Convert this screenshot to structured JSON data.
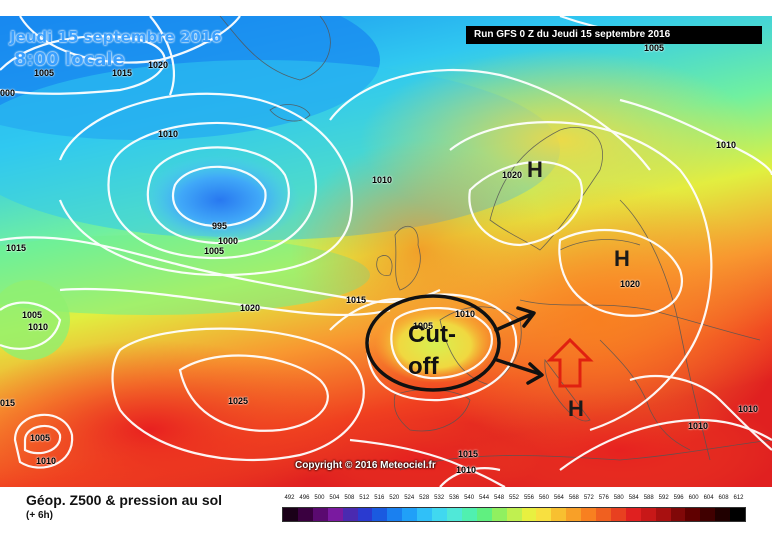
{
  "header": {
    "date_label": "Jeudi 15 septembre 2016",
    "time_label": "8:00 locale",
    "run_label": "Run GFS 0 Z du Jeudi 15 septembre 2016"
  },
  "isobars": [
    {
      "name": "isobar-label-1005-greenland",
      "value": "1005"
    },
    {
      "name": "isobar-label-1015-greenland",
      "value": "1015"
    },
    {
      "name": "isobar-label-1020-north",
      "value": "1020"
    },
    {
      "name": "isobar-label-1000-west-edge",
      "value": "000"
    },
    {
      "name": "isobar-label-1010-north-atlantic",
      "value": "1010"
    },
    {
      "name": "isobar-label-995-low",
      "value": "995"
    },
    {
      "name": "isobar-label-1000-low",
      "value": "1000"
    },
    {
      "name": "isobar-label-1005-low",
      "value": "1005"
    },
    {
      "name": "isobar-label-1010-mid",
      "value": "1010"
    },
    {
      "name": "isobar-label-1015-west",
      "value": "1015"
    },
    {
      "name": "isobar-label-1005-west",
      "value": "1005"
    },
    {
      "name": "isobar-label-1010-west",
      "value": "1010"
    },
    {
      "name": "isobar-label-1020-atlantic",
      "value": "1020"
    },
    {
      "name": "isobar-label-1015-biscay",
      "value": "1015"
    },
    {
      "name": "isobar-label-1025-azores",
      "value": "1025"
    },
    {
      "name": "isobar-label-015-sw-edge",
      "value": "015"
    },
    {
      "name": "isobar-label-1005-sw-low",
      "value": "1005"
    },
    {
      "name": "isobar-label-1010-sw-low",
      "value": "1010"
    },
    {
      "name": "isobar-label-1005-top-right",
      "value": "1005"
    },
    {
      "name": "isobar-label-1020-scandinavia",
      "value": "1020"
    },
    {
      "name": "isobar-label-1010-east",
      "value": "1010"
    },
    {
      "name": "isobar-label-1020-central-europe",
      "value": "1020"
    },
    {
      "name": "isobar-label-1005-cutoff",
      "value": "1005"
    },
    {
      "name": "isobar-label-1010-cutoff",
      "value": "1010"
    },
    {
      "name": "isobar-label-1015-south",
      "value": "1015"
    },
    {
      "name": "isobar-label-1010-south",
      "value": "1010"
    },
    {
      "name": "isobar-label-1010-mediterranean",
      "value": "1010"
    },
    {
      "name": "isobar-label-1010-southeast",
      "value": "1010"
    }
  ],
  "pressure_centers": {
    "h_scandinavia": "H",
    "h_central_europe": "H",
    "h_italy": "H"
  },
  "annotation": {
    "cutoff_line1": "Cut-",
    "cutoff_line2": "off"
  },
  "copyright": "Copyright © 2016 Meteociel.fr",
  "legend": {
    "title": "Géop. Z500 & pression au sol",
    "subtitle": "(+ 6h)",
    "scale_values": [
      "492",
      "496",
      "500",
      "504",
      "508",
      "512",
      "516",
      "520",
      "524",
      "528",
      "532",
      "536",
      "540",
      "544",
      "548",
      "552",
      "556",
      "560",
      "564",
      "568",
      "572",
      "576",
      "580",
      "584",
      "588",
      "592",
      "596",
      "600",
      "604",
      "608",
      "612"
    ],
    "scale_colors": [
      "#1a0018",
      "#3a0040",
      "#5a0a70",
      "#7a1aa0",
      "#4a2ab0",
      "#2a3ad0",
      "#1a5ae0",
      "#1a80f0",
      "#20a0f8",
      "#30c0f8",
      "#40d8f0",
      "#50e8d8",
      "#50f0b0",
      "#60f080",
      "#90f060",
      "#c0f050",
      "#e8f040",
      "#f8e040",
      "#f8c030",
      "#f8a028",
      "#f88020",
      "#f06020",
      "#e84020",
      "#e02020",
      "#c81818",
      "#a81010",
      "#800808",
      "#600000",
      "#400000",
      "#200000",
      "#000000"
    ]
  },
  "colors": {
    "arrow_outline": "#e02010",
    "annotation_ink": "#111111"
  }
}
